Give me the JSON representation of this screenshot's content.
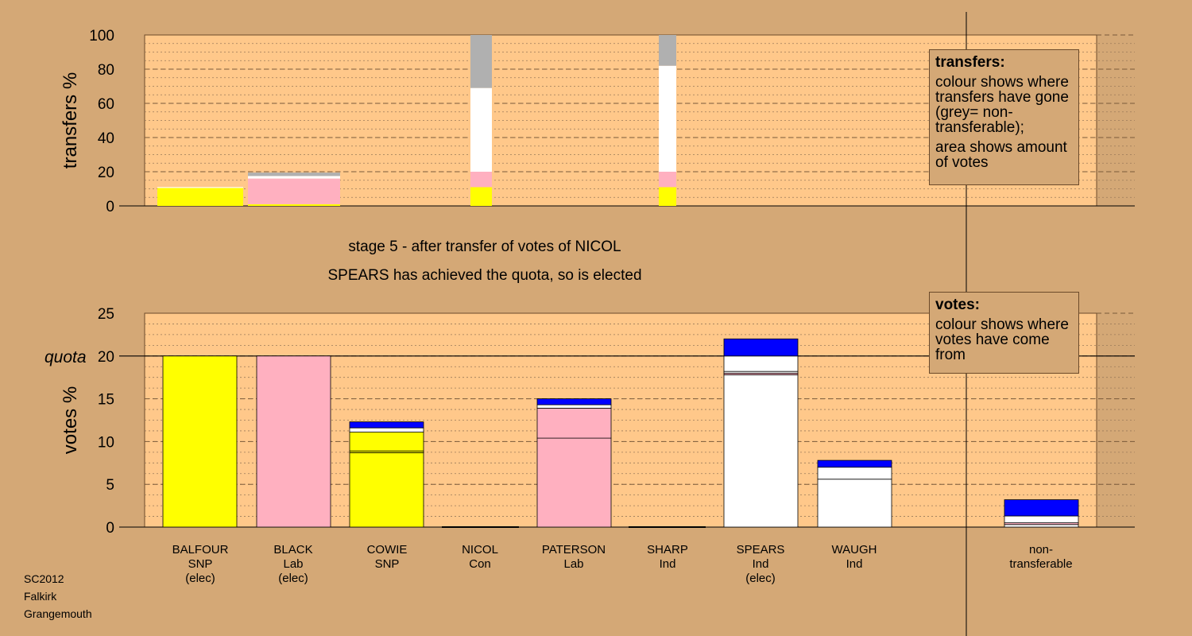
{
  "footer": {
    "election": "SC2012",
    "council": "Falkirk",
    "ward": "Grangemouth"
  },
  "stage": {
    "title": "stage 5 - after transfer of votes of NICOL",
    "subtitle": "SPEARS has achieved the quota, so is elected"
  },
  "legend_transfers": {
    "title": "transfers:",
    "line1": "colour shows where transfers have gone (grey= non-transferable);",
    "line2": "area shows amount of votes"
  },
  "legend_votes": {
    "title": "votes:",
    "line1": "colour shows where votes have come from"
  },
  "colors": {
    "SNP": "#ffff00",
    "Lab": "#ffb0c0",
    "Con": "#0000ff",
    "Ind": "#ffffff",
    "nontransferable": "#b0b0b0",
    "plot_bg": "#ffc88a",
    "page_bg": "#d4a876"
  },
  "candidates": [
    {
      "name": "BALFOUR",
      "party": "SNP",
      "status": "(elec)"
    },
    {
      "name": "BLACK",
      "party": "Lab",
      "status": "(elec)"
    },
    {
      "name": "COWIE",
      "party": "SNP",
      "status": ""
    },
    {
      "name": "NICOL",
      "party": "Con",
      "status": ""
    },
    {
      "name": "PATERSON",
      "party": "Lab",
      "status": ""
    },
    {
      "name": "SHARP",
      "party": "Ind",
      "status": ""
    },
    {
      "name": "SPEARS",
      "party": "Ind",
      "status": "(elec)"
    },
    {
      "name": "WAUGH",
      "party": "Ind",
      "status": ""
    }
  ],
  "nontransferable": {
    "line1": "non-",
    "line2": "transferable"
  },
  "chart_data": [
    {
      "type": "bar",
      "ylabel": "transfers %",
      "ylim": [
        0,
        100
      ],
      "yticks": [
        0,
        20,
        40,
        60,
        80,
        100
      ],
      "bars": [
        {
          "candidate": "BALFOUR",
          "segments": [
            {
              "color": "#ffff00",
              "value": 10.5
            },
            {
              "color": "#ffffff",
              "value": 0.5
            }
          ]
        },
        {
          "candidate": "BLACK",
          "segments": [
            {
              "color": "#ffff00",
              "value": 1
            },
            {
              "color": "#ffb0c0",
              "value": 15
            },
            {
              "color": "#ffffff",
              "value": 1.5
            },
            {
              "color": "#b0b0b0",
              "value": 2
            }
          ]
        },
        {
          "candidate": "NICOL",
          "segments": [
            {
              "color": "#ffff00",
              "value": 11
            },
            {
              "color": "#ffb0c0",
              "value": 9
            },
            {
              "color": "#ffffff",
              "value": 49
            },
            {
              "color": "#b0b0b0",
              "value": 31
            }
          ]
        },
        {
          "candidate": "SHARP",
          "segments": [
            {
              "color": "#ffff00",
              "value": 11
            },
            {
              "color": "#ffb0c0",
              "value": 9
            },
            {
              "color": "#ffffff",
              "value": 62
            },
            {
              "color": "#b0b0b0",
              "value": 18
            }
          ]
        }
      ]
    },
    {
      "type": "bar",
      "ylabel": "votes %",
      "ylim": [
        0,
        25
      ],
      "yticks": [
        0,
        5,
        10,
        15,
        20,
        25
      ],
      "quota": 20,
      "quota_label": "quota",
      "bars": [
        {
          "candidate": "BALFOUR",
          "segments": [
            {
              "color": "#ffff00",
              "value": 20
            }
          ]
        },
        {
          "candidate": "BLACK",
          "segments": [
            {
              "color": "#ffb0c0",
              "value": 20
            }
          ]
        },
        {
          "candidate": "COWIE",
          "segments": [
            {
              "color": "#ffff00",
              "value": 8.7
            },
            {
              "color": "#ffff00",
              "value": 0.2
            },
            {
              "color": "#ffff00",
              "value": 2.2
            },
            {
              "color": "#ffffff",
              "value": 0.5
            },
            {
              "color": "#0000ff",
              "value": 0.7
            }
          ]
        },
        {
          "candidate": "NICOL",
          "segments": []
        },
        {
          "candidate": "PATERSON",
          "segments": [
            {
              "color": "#ffb0c0",
              "value": 10.4
            },
            {
              "color": "#ffb0c0",
              "value": 3.5
            },
            {
              "color": "#ffffff",
              "value": 0.4
            },
            {
              "color": "#0000ff",
              "value": 0.7
            }
          ]
        },
        {
          "candidate": "SHARP",
          "segments": []
        },
        {
          "candidate": "SPEARS",
          "segments": [
            {
              "color": "#ffffff",
              "value": 17.8
            },
            {
              "color": "#ffb0c0",
              "value": 0.2
            },
            {
              "color": "#ffffff",
              "value": 0.2
            },
            {
              "color": "#ffffff",
              "value": 1.8
            },
            {
              "color": "#0000ff",
              "value": 2
            }
          ]
        },
        {
          "candidate": "WAUGH",
          "segments": [
            {
              "color": "#ffffff",
              "value": 5.6
            },
            {
              "color": "#ffffff",
              "value": 1.4
            },
            {
              "color": "#0000ff",
              "value": 0.8
            }
          ]
        },
        {
          "candidate": "non-transferable",
          "segments": [
            {
              "color": "#ffffff",
              "value": 0.3
            },
            {
              "color": "#ffb0c0",
              "value": 0.2
            },
            {
              "color": "#ffffff",
              "value": 0.8
            },
            {
              "color": "#0000ff",
              "value": 1.9
            }
          ]
        }
      ]
    }
  ]
}
